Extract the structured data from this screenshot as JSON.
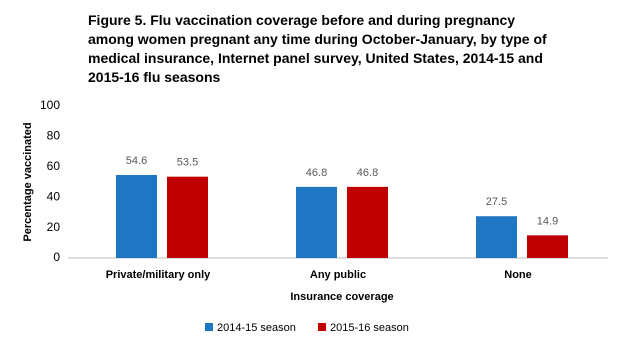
{
  "chart_data": {
    "type": "bar",
    "title": "Figure 5. Flu vaccination coverage before and during pregnancy among women pregnant any time during October-January, by type of medical insurance, Internet panel survey, United States, 2014-15 and 2015-16 flu seasons",
    "x_label": "Insurance coverage",
    "y_label": "Percentage vaccinated",
    "categories": [
      "Private/military only",
      "Any public",
      "None"
    ],
    "series": [
      {
        "name": "2014-15 season",
        "color": "#1f77c4",
        "values": [
          54.6,
          46.8,
          27.5
        ]
      },
      {
        "name": "2015-16 season",
        "color": "#c00000",
        "values": [
          53.5,
          46.8,
          14.9
        ]
      }
    ],
    "ylim": [
      0,
      100
    ],
    "yticks": [
      0,
      20,
      40,
      60,
      80,
      100
    ],
    "grid": false,
    "legend": "bottom"
  }
}
